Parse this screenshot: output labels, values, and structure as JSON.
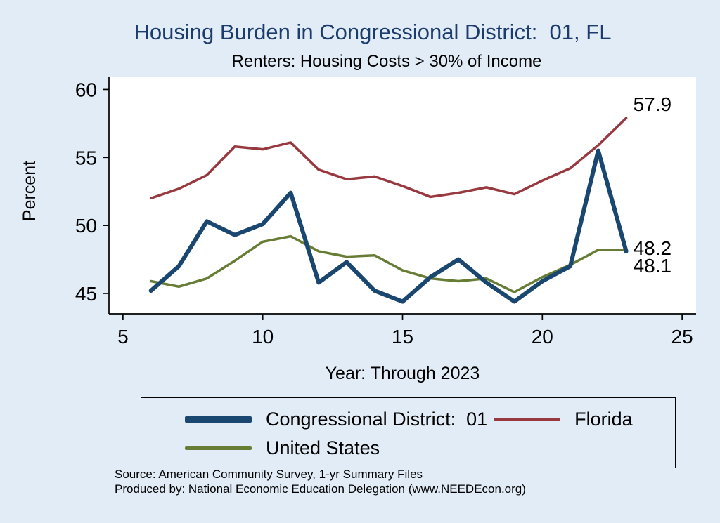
{
  "title": "Housing Burden in Congressional District:  01, FL",
  "subtitle": "Renters: Housing Costs > 30% of Income",
  "y_axis_label": "Percent",
  "x_axis_label": "Year: Through 2023",
  "source_line1": "Source: American Community Survey, 1-yr Summary Files",
  "source_line2": "Produced by: National Economic Education Delegation (www.NEEDEcon.org)",
  "colors": {
    "background": "#e2ecf7",
    "plot_background": "#ffffff",
    "title": "#1b3c6d",
    "axis": "#000000",
    "district": "#1a476f",
    "florida": "#98393f",
    "united_states": "#677d35"
  },
  "chart_data": {
    "type": "line",
    "title": "Housing Burden in Congressional District:  01, FL",
    "subtitle": "Renters: Housing Costs > 30% of Income",
    "xlabel": "Year: Through 2023",
    "ylabel": "Percent",
    "xlim": [
      4.5,
      25.5
    ],
    "ylim": [
      43.5,
      60.9
    ],
    "x_ticks": [
      5,
      10,
      15,
      20,
      25
    ],
    "y_ticks": [
      45,
      50,
      55,
      60
    ],
    "grid": false,
    "legend_position": "bottom",
    "x": [
      6,
      7,
      8,
      9,
      10,
      11,
      12,
      13,
      14,
      15,
      16,
      17,
      18,
      19,
      20,
      21,
      22,
      23
    ],
    "series": [
      {
        "name": "Congressional District:  01",
        "color": "#1a476f",
        "width": 6,
        "values": [
          45.2,
          47.0,
          50.3,
          49.3,
          50.1,
          52.4,
          45.8,
          47.3,
          45.2,
          44.4,
          46.2,
          47.5,
          45.8,
          44.4,
          45.9,
          47.0,
          55.5,
          48.1
        ],
        "end_label": "48.1",
        "end_label_dy": 30
      },
      {
        "name": "Florida",
        "color": "#98393f",
        "width": 3.5,
        "values": [
          52.0,
          52.7,
          53.7,
          55.8,
          55.6,
          56.1,
          54.1,
          53.4,
          53.6,
          52.9,
          52.1,
          52.4,
          52.8,
          52.3,
          53.3,
          54.2,
          55.9,
          57.9
        ],
        "end_label": "57.9",
        "end_label_dy": -10
      },
      {
        "name": "United States",
        "color": "#677d35",
        "width": 3.5,
        "values": [
          45.9,
          45.5,
          46.1,
          47.4,
          48.8,
          49.2,
          48.1,
          47.7,
          47.8,
          46.7,
          46.1,
          45.9,
          46.1,
          45.1,
          46.2,
          47.1,
          48.2,
          48.2
        ],
        "end_label": "48.2",
        "end_label_dy": 7
      }
    ],
    "draw_order": [
      1,
      2,
      0
    ],
    "legend_order": [
      0,
      1,
      2
    ]
  }
}
